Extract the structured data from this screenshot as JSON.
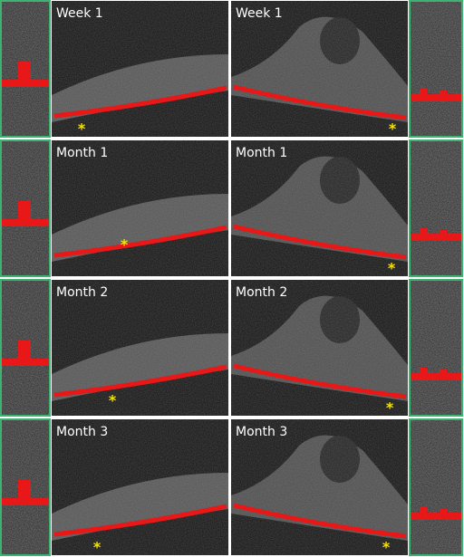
{
  "rows": [
    {
      "left_label": "Week 1",
      "right_label": "Week 1",
      "left_marker": "*",
      "right_marker": "*"
    },
    {
      "left_label": "Month 1",
      "right_label": "Month 1",
      "left_marker": "*",
      "right_marker": "*"
    },
    {
      "left_label": "Month 2",
      "right_label": "Month 2",
      "left_marker": "*",
      "right_marker": "*"
    },
    {
      "left_label": "Month 3",
      "right_label": "Month 3",
      "left_marker": "*",
      "right_marker": "*"
    }
  ]
}
